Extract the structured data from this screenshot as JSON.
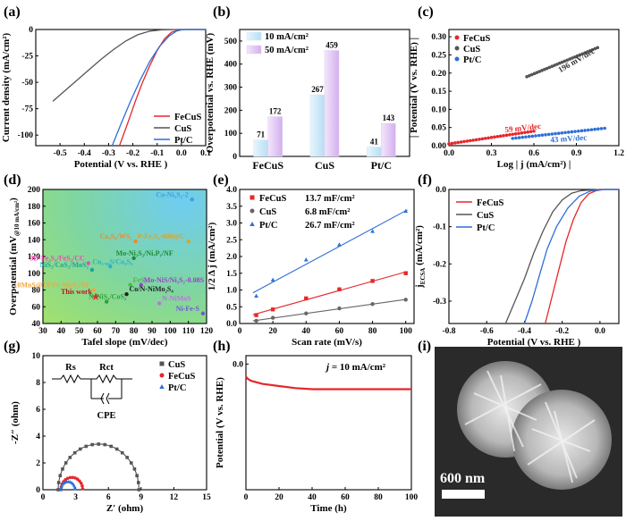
{
  "chart_data": [
    {
      "id": "a",
      "panel_label": "(a)",
      "type": "line",
      "xlabel": "Potential (V vs. RHE )",
      "ylabel": "Current density (mA/cm²)",
      "xlim": [
        -0.6,
        0.1
      ],
      "ylim": [
        -110,
        0
      ],
      "xticks": [
        -0.5,
        -0.4,
        -0.3,
        -0.2,
        -0.1,
        0.0,
        0.1
      ],
      "yticks": [
        -100,
        -75,
        -50,
        -25,
        0
      ],
      "xtick_labels": [
        "-0.5",
        "-0.4",
        "-0.3",
        "-0.2",
        "-0.1",
        "0.0",
        "0.1"
      ],
      "ytick_labels": [
        "-100",
        "-75",
        "-50",
        "-25",
        "0"
      ],
      "legend": "right",
      "series": [
        {
          "name": "FeCuS",
          "color": "#e8262a",
          "points": [
            [
              -0.255,
              -110
            ],
            [
              -0.22,
              -88
            ],
            [
              -0.19,
              -68
            ],
            [
              -0.16,
              -50
            ],
            [
              -0.13,
              -34
            ],
            [
              -0.1,
              -20
            ],
            [
              -0.07,
              -9
            ],
            [
              -0.04,
              -2.5
            ],
            [
              -0.01,
              -0.5
            ],
            [
              0.02,
              0
            ],
            [
              0.1,
              0
            ]
          ]
        },
        {
          "name": "CuS",
          "color": "#555555",
          "points": [
            [
              -0.53,
              -68
            ],
            [
              -0.48,
              -58
            ],
            [
              -0.43,
              -48
            ],
            [
              -0.38,
              -38
            ],
            [
              -0.33,
              -28
            ],
            [
              -0.28,
              -19
            ],
            [
              -0.23,
              -11
            ],
            [
              -0.18,
              -5
            ],
            [
              -0.13,
              -1.5
            ],
            [
              -0.08,
              -0.3
            ],
            [
              0.0,
              0
            ],
            [
              0.1,
              0
            ]
          ]
        },
        {
          "name": "Pt/C",
          "color": "#2f6fd6",
          "points": [
            [
              -0.285,
              -110
            ],
            [
              -0.25,
              -90
            ],
            [
              -0.21,
              -68
            ],
            [
              -0.17,
              -48
            ],
            [
              -0.13,
              -30
            ],
            [
              -0.09,
              -16
            ],
            [
              -0.05,
              -6
            ],
            [
              -0.02,
              -1.5
            ],
            [
              0.0,
              -0.3
            ],
            [
              0.02,
              0
            ],
            [
              0.1,
              0
            ]
          ]
        }
      ]
    },
    {
      "id": "b",
      "panel_label": "(b)",
      "type": "bar",
      "ylabel": "Overpotential vs. RHE (mV)",
      "categories": [
        "FeCuS",
        "CuS",
        "Pt/C"
      ],
      "ylim": [
        0,
        550
      ],
      "yticks": [
        0,
        100,
        200,
        300,
        400,
        500
      ],
      "ytick_labels": [
        "0",
        "100",
        "200",
        "300",
        "400",
        "500"
      ],
      "legend": "top-left",
      "series": [
        {
          "name": "10 mA/cm²",
          "color": "#cfe8f7",
          "values": [
            71,
            267,
            41
          ],
          "labels": [
            "71",
            "267",
            "41"
          ]
        },
        {
          "name": "50 mA/cm²",
          "color": "#e2c9f2",
          "values": [
            172,
            459,
            143
          ],
          "labels": [
            "172",
            "459",
            "143"
          ]
        }
      ]
    },
    {
      "id": "c",
      "panel_label": "(c)",
      "type": "scatter",
      "xlabel": "Log | j (mA/cm²) |",
      "ylabel": "| Potential (V vs. RHE) |",
      "xlim": [
        0.0,
        1.2
      ],
      "ylim": [
        0.0,
        0.32
      ],
      "xticks": [
        0.0,
        0.3,
        0.6,
        0.9,
        1.2
      ],
      "xtick_labels": [
        "0.0",
        "0.3",
        "0.6",
        "0.9",
        "1.2"
      ],
      "yticks": [
        0.0,
        0.05,
        0.1,
        0.15,
        0.2,
        0.25,
        0.3
      ],
      "ytick_labels": [
        "0.00",
        "0.05",
        "0.10",
        "0.15",
        "0.20",
        "0.25",
        "0.30"
      ],
      "legend": "top-left",
      "series": [
        {
          "name": "FeCuS",
          "color": "#e8262a",
          "x_range": [
            0.0,
            0.6
          ],
          "y_range": [
            0.005,
            0.04
          ],
          "slope_label": "59 mV/dec"
        },
        {
          "name": "CuS",
          "color": "#555555",
          "x_range": [
            0.55,
            1.05
          ],
          "y_range": [
            0.19,
            0.27
          ],
          "slope_label": "196 mV/dec"
        },
        {
          "name": "Pt/C",
          "color": "#2f6fd6",
          "x_range": [
            0.45,
            1.1
          ],
          "y_range": [
            0.02,
            0.048
          ],
          "slope_label": "43 mV/dec"
        }
      ]
    },
    {
      "id": "d",
      "panel_label": "(d)",
      "type": "scatter",
      "xlabel": "Tafel slope (mV/dec)",
      "ylabel": "Overpotential (mV@10 mA/cm²)",
      "ylabel_main": "Overpotential (mV",
      "ylabel_sub": "@10 mA/cm²",
      "ylabel_end": ")",
      "xlim": [
        30,
        120
      ],
      "ylim": [
        40,
        200
      ],
      "xticks": [
        30,
        40,
        50,
        60,
        70,
        80,
        90,
        100,
        110,
        120
      ],
      "xtick_labels": [
        "30",
        "40",
        "50",
        "60",
        "70",
        "80",
        "90",
        "100",
        "110",
        "120"
      ],
      "yticks": [
        40,
        60,
        80,
        100,
        120,
        140,
        160,
        180,
        200
      ],
      "ytick_labels": [
        "40",
        "60",
        "80",
        "100",
        "120",
        "140",
        "160",
        "180",
        "200"
      ],
      "points": [
        {
          "label": "Co-Ni₃S₂-2",
          "x": 112,
          "y": 188,
          "color": "#3aa0e0"
        },
        {
          "label": "Co₉S₈/WS₂",
          "x": 81,
          "y": 138,
          "color": "#f08a2c"
        },
        {
          "label": "P-Fe₃S₄-600@C",
          "x": 110,
          "y": 138,
          "color": "#d6a62a"
        },
        {
          "label": "3D-Fe₃S₄/FeS₂/CC",
          "x": 55,
          "y": 112,
          "color": "#e84bb0"
        },
        {
          "label": "Mo-Ni₃S₂/NiₓPᵧ/NF",
          "x": 80,
          "y": 118,
          "color": "#1c8c2e"
        },
        {
          "label": "NiS₂/CoS₂/MoS₂",
          "x": 57,
          "y": 104,
          "color": "#1aa3a3"
        },
        {
          "label": "Cu₁.₉₆S/Co₉S₈",
          "x": 67,
          "y": 108,
          "color": "#2fb0c8"
        },
        {
          "label": "FeS₂",
          "x": 78,
          "y": 86,
          "color": "#4fb84a"
        },
        {
          "label": "Mo-NiS/Ni₃S₂-0.08S",
          "x": 84,
          "y": 86,
          "color": "#9b3fc8"
        },
        {
          "label": "10MnS@1T-Fe-MoS₂/NF",
          "x": 58,
          "y": 80,
          "color": "#f2a640"
        },
        {
          "label": "This work",
          "x": 59,
          "y": 72,
          "color": "#e8262a"
        },
        {
          "label": "Co/N-NiMo₂S₄",
          "x": 76,
          "y": 75,
          "color": "#222222"
        },
        {
          "label": "N-NiS₂/CoS₂",
          "x": 65,
          "y": 66,
          "color": "#2f9e3a"
        },
        {
          "label": "N-NiMoS",
          "x": 94,
          "y": 64,
          "color": "#c070e0"
        },
        {
          "label": "Ni-Fe-S",
          "x": 118,
          "y": 52,
          "color": "#6f58d6"
        }
      ]
    },
    {
      "id": "e",
      "panel_label": "(e)",
      "type": "scatter",
      "xlabel": "Scan rate (mV/s)",
      "ylabel": "1/2 Δ j (mA/cm²)",
      "xlim": [
        0,
        105
      ],
      "ylim": [
        0,
        4
      ],
      "xticks": [
        0,
        20,
        40,
        60,
        80,
        100
      ],
      "xtick_labels": [
        "0",
        "20",
        "40",
        "60",
        "80",
        "100"
      ],
      "yticks": [
        0.0,
        0.5,
        1.0,
        1.5,
        2.0,
        2.5,
        3.0,
        3.5,
        4.0
      ],
      "ytick_labels": [
        "0.0",
        "0.5",
        "1.0",
        "1.5",
        "2.0",
        "2.5",
        "3.0",
        "3.5",
        "4.0"
      ],
      "legend": "top-left",
      "series": [
        {
          "name": "FeCuS",
          "value_label": "13.7 mF/cm²",
          "color": "#e8262a",
          "x": [
            10,
            20,
            40,
            60,
            80,
            100
          ],
          "y": [
            0.25,
            0.42,
            0.75,
            1.02,
            1.27,
            1.5
          ]
        },
        {
          "name": "CuS",
          "value_label": "6.8 mF/cm²",
          "color": "#666666",
          "x": [
            10,
            20,
            40,
            60,
            80,
            100
          ],
          "y": [
            0.08,
            0.17,
            0.3,
            0.45,
            0.58,
            0.71
          ]
        },
        {
          "name": "Pt/C",
          "value_label": "26.7 mF/cm²",
          "color": "#2f6fd6",
          "x": [
            10,
            20,
            40,
            60,
            80,
            100
          ],
          "y": [
            0.82,
            1.3,
            1.9,
            2.35,
            2.75,
            3.35
          ]
        }
      ]
    },
    {
      "id": "f",
      "panel_label": "(f)",
      "type": "line",
      "xlabel": "Potential (V vs. RHE )",
      "ylabel": "j ECSA (mA/cm²)",
      "ylabel_main": "j",
      "ylabel_sub": "ECSA",
      "ylabel_end": " (mA/cm²)",
      "xlim": [
        -0.8,
        0.1
      ],
      "ylim": [
        -0.36,
        0
      ],
      "xticks": [
        -0.8,
        -0.6,
        -0.4,
        -0.2,
        0.0
      ],
      "xtick_labels": [
        "-0.8",
        "-0.6",
        "-0.4",
        "-0.2",
        "0.0"
      ],
      "yticks": [
        -0.3,
        -0.2,
        -0.1,
        0.0
      ],
      "ytick_labels": [
        "-0.3",
        "-0.2",
        "-0.1",
        "0.0"
      ],
      "legend": "top-right",
      "series": [
        {
          "name": "FeCuS",
          "color": "#e8262a",
          "points": [
            [
              -0.29,
              -0.36
            ],
            [
              -0.26,
              -0.3
            ],
            [
              -0.22,
              -0.22
            ],
            [
              -0.18,
              -0.14
            ],
            [
              -0.14,
              -0.08
            ],
            [
              -0.1,
              -0.035
            ],
            [
              -0.06,
              -0.012
            ],
            [
              -0.02,
              -0.003
            ],
            [
              0.02,
              0
            ],
            [
              0.1,
              0
            ]
          ]
        },
        {
          "name": "CuS",
          "color": "#555555",
          "points": [
            [
              -0.5,
              -0.36
            ],
            [
              -0.45,
              -0.3
            ],
            [
              -0.4,
              -0.24
            ],
            [
              -0.35,
              -0.17
            ],
            [
              -0.3,
              -0.11
            ],
            [
              -0.25,
              -0.06
            ],
            [
              -0.2,
              -0.028
            ],
            [
              -0.15,
              -0.01
            ],
            [
              -0.1,
              -0.003
            ],
            [
              0.0,
              0
            ],
            [
              0.1,
              0
            ]
          ]
        },
        {
          "name": "Pt/C",
          "color": "#2f6fd6",
          "points": [
            [
              -0.4,
              -0.36
            ],
            [
              -0.36,
              -0.3
            ],
            [
              -0.32,
              -0.23
            ],
            [
              -0.28,
              -0.16
            ],
            [
              -0.23,
              -0.1
            ],
            [
              -0.17,
              -0.05
            ],
            [
              -0.11,
              -0.018
            ],
            [
              -0.05,
              -0.004
            ],
            [
              0.02,
              0
            ],
            [
              0.1,
              0
            ]
          ]
        }
      ]
    },
    {
      "id": "g",
      "panel_label": "(g)",
      "type": "scatter",
      "xlabel": "Z′  (ohm)",
      "ylabel": "-Z″  (ohm)",
      "xlim": [
        0,
        15
      ],
      "ylim": [
        0,
        10
      ],
      "xticks": [
        0,
        3,
        6,
        9,
        12,
        15
      ],
      "xtick_labels": [
        "0",
        "3",
        "6",
        "9",
        "12",
        "15"
      ],
      "yticks": [
        0,
        2,
        4,
        6,
        8,
        10
      ],
      "ytick_labels": [
        "0",
        "2",
        "4",
        "6",
        "8",
        "10"
      ],
      "legend": "top-right",
      "circuit": {
        "r1": "Rs",
        "r2": "Rct",
        "c": "CPE"
      },
      "series": [
        {
          "name": "CuS",
          "color": "#555555",
          "center": 5.1,
          "radius": 3.7,
          "marker": "square"
        },
        {
          "name": "FeCuS",
          "color": "#e8262a",
          "center": 2.65,
          "radius": 1.0,
          "marker": "circle"
        },
        {
          "name": "Pt/C",
          "color": "#2f6fd6",
          "center": 2.3,
          "radius": 0.65,
          "marker": "triangle"
        }
      ]
    },
    {
      "id": "h",
      "panel_label": "(h)",
      "type": "line",
      "xlabel": "Time (h)",
      "ylabel": "Potential (V vs. RHE)",
      "xlim": [
        0,
        100
      ],
      "ylim": [
        -0.6,
        0.04
      ],
      "xticks": [
        0,
        20,
        40,
        60,
        80,
        100
      ],
      "xtick_labels": [
        "0",
        "20",
        "40",
        "60",
        "80",
        "100"
      ],
      "yticks": [
        0.0
      ],
      "ytick_labels": [
        "0.0"
      ],
      "annotation_j": "j",
      "annotation_rest": " = 10 mA/cm²",
      "series": [
        {
          "name": "FeCuS",
          "color": "#e8262a",
          "points": [
            [
              0,
              -0.06
            ],
            [
              1,
              -0.07
            ],
            [
              3,
              -0.08
            ],
            [
              10,
              -0.095
            ],
            [
              20,
              -0.105
            ],
            [
              30,
              -0.115
            ],
            [
              40,
              -0.12
            ],
            [
              60,
              -0.12
            ],
            [
              80,
              -0.12
            ],
            [
              100,
              -0.12
            ]
          ]
        }
      ]
    }
  ],
  "panel_i": {
    "panel_label": "(i)",
    "scale_bar": "600 nm"
  }
}
